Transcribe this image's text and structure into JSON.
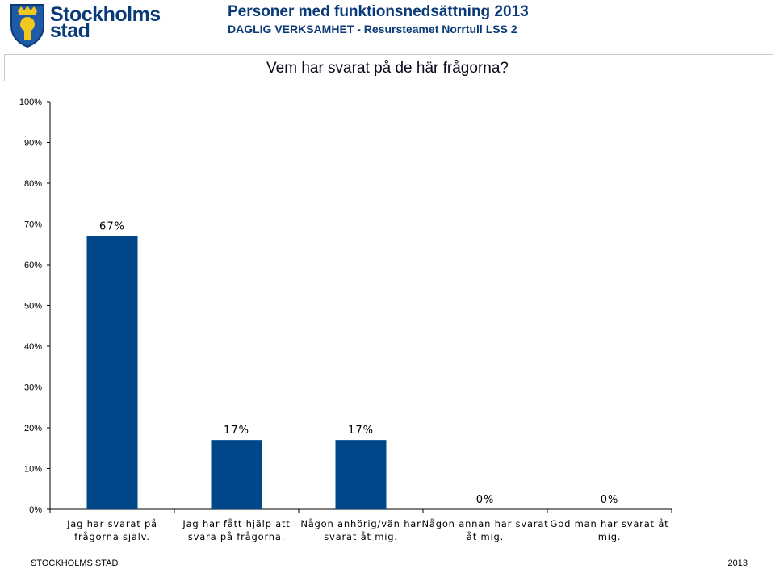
{
  "header": {
    "logo_line1": "Stockholms",
    "logo_line2": "stad",
    "title": "Personer med funktionsnedsättning 2013",
    "subtitle": "DAGLIG VERKSAMHET - Resursteamet Norrtull LSS 2"
  },
  "footer": {
    "left": "STOCKHOLMS STAD",
    "right": "2013"
  },
  "colors": {
    "bar": "#00478a",
    "header_text": "#0a3a78",
    "logo_shield": "#1f5aa6",
    "logo_gold": "#f2c81e"
  },
  "chart_data": {
    "type": "bar",
    "title": "Vem har svarat på de här frågorna?",
    "categories": [
      [
        "Jag har svarat på",
        "frågorna själv."
      ],
      [
        "Jag har fått hjälp att",
        "svara på frågorna."
      ],
      [
        "Någon anhörig/vän har",
        "svarat åt mig."
      ],
      [
        "Någon annan har svarat",
        "åt mig."
      ],
      [
        "God man har svarat åt",
        "mig."
      ]
    ],
    "values": [
      67,
      17,
      17,
      0,
      0
    ],
    "data_labels": [
      "67%",
      "17%",
      "17%",
      "0%",
      "0%"
    ],
    "yticks": [
      "0%",
      "10%",
      "20%",
      "30%",
      "40%",
      "50%",
      "60%",
      "70%",
      "80%",
      "90%",
      "100%"
    ],
    "ylim": [
      0,
      100
    ],
    "grid": false
  }
}
